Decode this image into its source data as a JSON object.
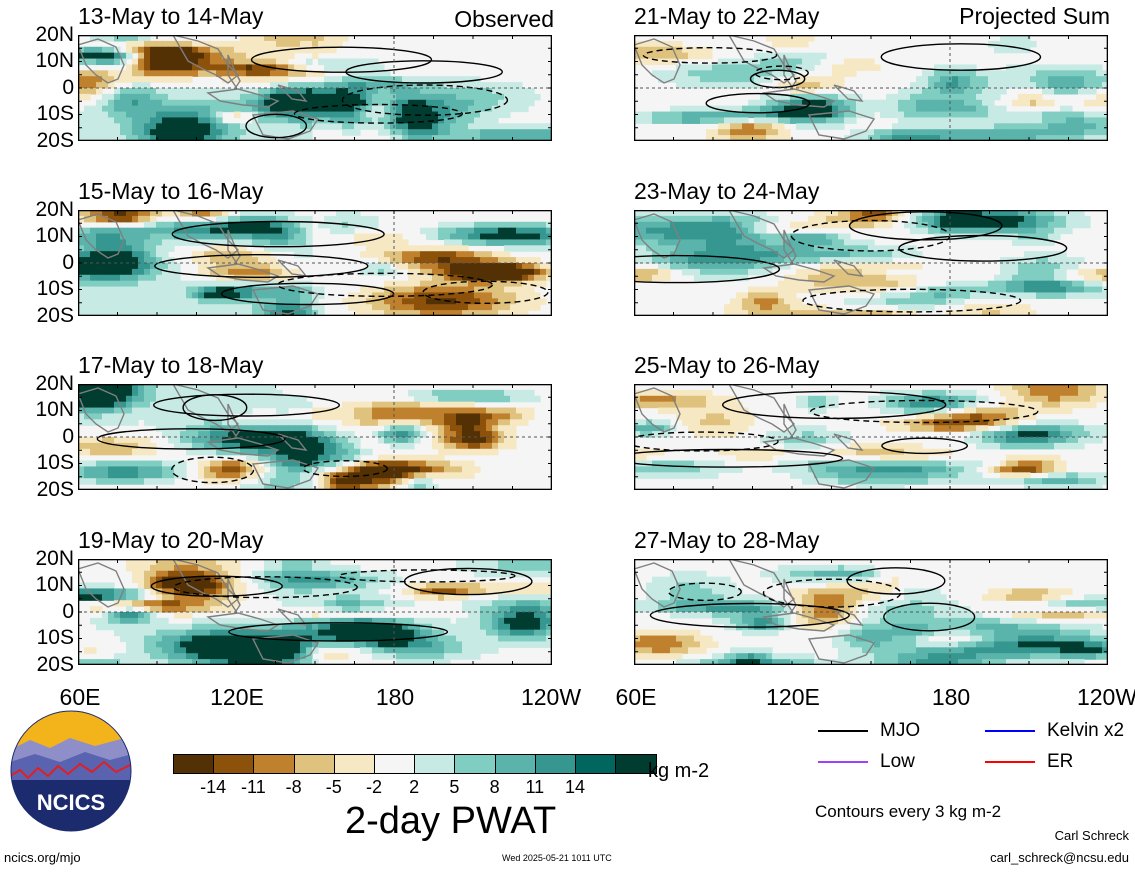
{
  "panels": [
    {
      "id": "p0",
      "title": "13-May to 14-May",
      "tag": "Observed",
      "seed": 3
    },
    {
      "id": "p1",
      "title": "15-May to 16-May",
      "tag": "",
      "seed": 7
    },
    {
      "id": "p2",
      "title": "17-May to 18-May",
      "tag": "",
      "seed": 11
    },
    {
      "id": "p3",
      "title": "19-May to 20-May",
      "tag": "",
      "seed": 19
    },
    {
      "id": "p4",
      "title": "21-May to 22-May",
      "tag": "Projected Sum",
      "seed": 23
    },
    {
      "id": "p5",
      "title": "23-May to 24-May",
      "tag": "",
      "seed": 29
    },
    {
      "id": "p6",
      "title": "25-May to 26-May",
      "tag": "",
      "seed": 31
    },
    {
      "id": "p7",
      "title": "27-May to 28-May",
      "tag": "",
      "seed": 37
    }
  ],
  "lat_labels": [
    "20N",
    "10N",
    "0",
    "10S",
    "20S"
  ],
  "lon_labels": [
    "60E",
    "120E",
    "180",
    "120W"
  ],
  "colorbar": {
    "colors": [
      "#543005",
      "#8c510a",
      "#bf812d",
      "#dfc27d",
      "#f6e8c3",
      "#f5f5f5",
      "#c7eae5",
      "#80cdc1",
      "#5ab4ac",
      "#35978f",
      "#01665e",
      "#003c30"
    ],
    "ticks": [
      "-14",
      "-11",
      "-8",
      "-5",
      "-2",
      "2",
      "5",
      "8",
      "11",
      "14"
    ],
    "unit": "kg m-2"
  },
  "main_title": "2-day PWAT",
  "legend": [
    {
      "label": "MJO",
      "color": "#000000"
    },
    {
      "label": "Kelvin x2",
      "color": "#0000ff"
    },
    {
      "label": "Low",
      "color": "#a040ff"
    },
    {
      "label": "ER",
      "color": "#ff0000"
    }
  ],
  "contour_note": "Contours every 3 kg m-2",
  "logo_text": "NCICS",
  "footer": {
    "url": "ncics.org/mjo",
    "timestamp": "Wed 2025-05-21 1011 UTC",
    "author": "Carl Schreck",
    "email": "carl_schreck@ncsu.edu"
  },
  "chart_data": {
    "type": "heatmap",
    "variable": "2-day PWAT",
    "units": "kg m-2",
    "x_axis": {
      "labels": [
        "60E",
        "120E",
        "180",
        "120W"
      ],
      "range": [
        "60E",
        "120W"
      ]
    },
    "y_axis": {
      "labels": [
        "20N",
        "10N",
        "0",
        "10S",
        "20S"
      ],
      "range": [
        "20S",
        "20N"
      ]
    },
    "color_levels": [
      -14,
      -11,
      -8,
      -5,
      -2,
      2,
      5,
      8,
      11,
      14
    ],
    "observed_periods": [
      "13-May to 14-May",
      "15-May to 16-May",
      "17-May to 18-May",
      "19-May to 20-May"
    ],
    "projected_periods": [
      "21-May to 22-May",
      "23-May to 24-May",
      "25-May to 26-May",
      "27-May to 28-May"
    ],
    "contour_interval": 3,
    "contour_series": [
      "MJO",
      "Kelvin x2",
      "Low",
      "ER"
    ]
  }
}
